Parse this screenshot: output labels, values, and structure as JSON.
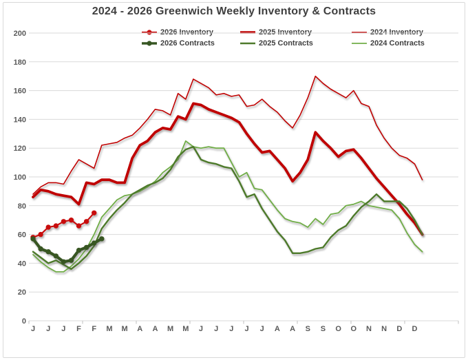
{
  "chart_data": {
    "type": "line",
    "title": "2024 - 2026 Greenwich Weekly Inventory & Contracts",
    "x_axis": {
      "unit": "week",
      "weeks": 52,
      "labels": [
        "J",
        "J",
        "J",
        "F",
        "F",
        "M",
        "M",
        "A",
        "A",
        "M",
        "M",
        "J",
        "J",
        "J",
        "J",
        "J",
        "A",
        "A",
        "S",
        "S",
        "O",
        "O",
        "N",
        "N",
        "D",
        "D"
      ],
      "label_every_n_weeks": 2
    },
    "y_axis": {
      "min": 0,
      "max": 200,
      "step": 20,
      "ticks": [
        0,
        20,
        40,
        60,
        80,
        100,
        120,
        140,
        160,
        180,
        200
      ]
    },
    "grid": true,
    "legend_position": "top",
    "colors": {
      "inventory_red": "#C00000",
      "contracts_2026_green": "#375623",
      "contracts_2025_green": "#4E7A2B",
      "contracts_2024_green": "#70AD47",
      "gridline": "#D9D9D9",
      "axis_text": "#595959",
      "title_text": "#3F3F3F"
    },
    "series": [
      {
        "name": "2026 Inventory",
        "color": "#C81010",
        "width": 2.2,
        "marker": true,
        "values": [
          58,
          60,
          65,
          66,
          69,
          70,
          66,
          69,
          75
        ]
      },
      {
        "name": "2025 Inventory",
        "color": "#C00000",
        "width": 3.8,
        "marker": false,
        "values": [
          86,
          91,
          90,
          88,
          87,
          86,
          81,
          96,
          95,
          98,
          98,
          96,
          96,
          113,
          122,
          125,
          131,
          134,
          133,
          142,
          140,
          151,
          150,
          147,
          145,
          143,
          141,
          138,
          130,
          123,
          117,
          118,
          112,
          106,
          97,
          103,
          112,
          131,
          125,
          120,
          114,
          118,
          119,
          113,
          106,
          99,
          93,
          87,
          81,
          74,
          68,
          60
        ]
      },
      {
        "name": "2024 Inventory",
        "color": "#C00000",
        "width": 1.6,
        "marker": false,
        "values": [
          88,
          93,
          96,
          96,
          95,
          104,
          112,
          109,
          106,
          122,
          123,
          124,
          127,
          129,
          134,
          140,
          147,
          146,
          143,
          158,
          154,
          168,
          165,
          162,
          157,
          158,
          156,
          157,
          149,
          150,
          154,
          149,
          145,
          139,
          134,
          143,
          155,
          170,
          165,
          161,
          158,
          155,
          160,
          151,
          149,
          136,
          127,
          120,
          115,
          113,
          109,
          98
        ]
      },
      {
        "name": "2026 Contracts",
        "color": "#375623",
        "width": 4.2,
        "marker": true,
        "values": [
          57,
          50,
          48,
          45,
          41,
          42,
          49,
          51,
          54,
          57
        ]
      },
      {
        "name": "2025 Contracts",
        "color": "#4E7A2B",
        "width": 2.4,
        "marker": false,
        "values": [
          48,
          44,
          40,
          42,
          39,
          36,
          40,
          45,
          52,
          64,
          71,
          77,
          82,
          88,
          91,
          94,
          96,
          99,
          105,
          114,
          119,
          121,
          112,
          110,
          109,
          107,
          106,
          97,
          86,
          88,
          78,
          70,
          62,
          56,
          47,
          47,
          48,
          50,
          51,
          58,
          63,
          66,
          73,
          79,
          83,
          88,
          83,
          83,
          83,
          78,
          70,
          60
        ]
      },
      {
        "name": "2024 Contracts",
        "color": "#70AD47",
        "width": 1.8,
        "marker": false,
        "values": [
          46,
          41,
          37,
          34,
          34,
          38,
          43,
          50,
          60,
          72,
          78,
          84,
          87,
          88,
          90,
          93,
          97,
          103,
          107,
          112,
          125,
          121,
          120,
          121,
          120,
          120,
          110,
          100,
          103,
          92,
          91,
          84,
          77,
          71,
          69,
          68,
          65,
          71,
          67,
          74,
          75,
          80,
          81,
          83,
          80,
          79,
          78,
          77,
          71,
          61,
          53,
          48
        ]
      }
    ]
  }
}
